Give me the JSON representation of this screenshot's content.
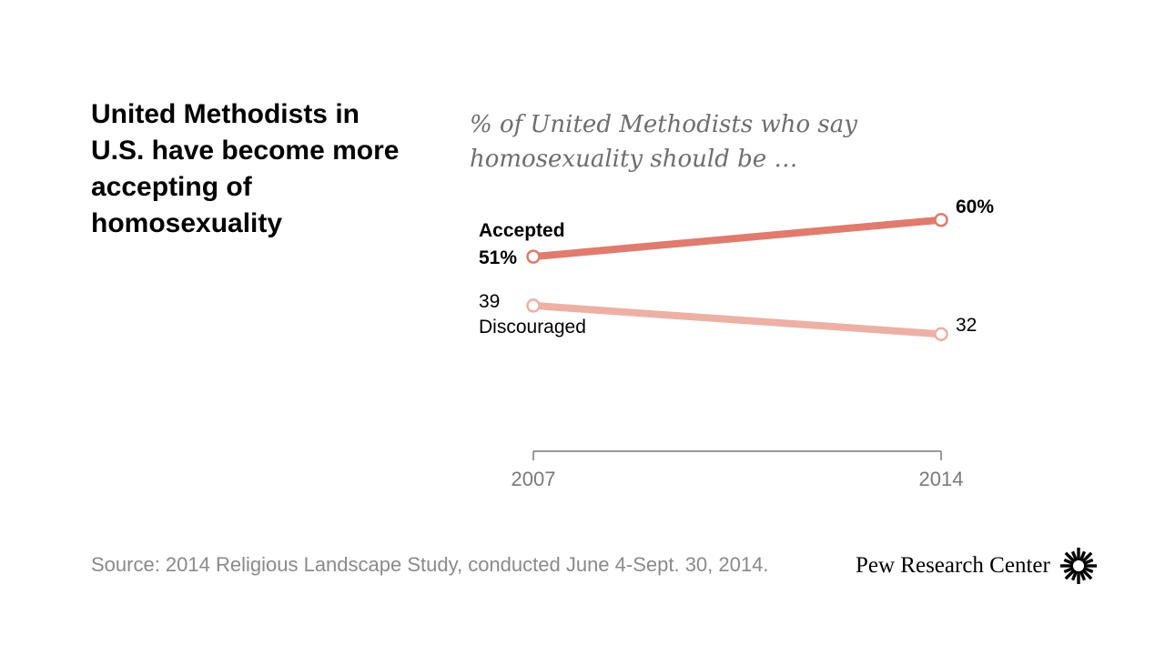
{
  "headline": "United Methodists in U.S. have become more accepting of homosexuality",
  "subtitle": "% of United Methodists who say homosexuality should be …",
  "source": "Source: 2014 Religious Landscape Study, conducted June 4-Sept. 30, 2014.",
  "logo_text": "Pew Research Center",
  "colors": {
    "accepted": "#e07b6e",
    "discouraged": "#edb0a5",
    "axis": "#7a7a7a"
  },
  "chart_data": {
    "type": "line",
    "x": [
      "2007",
      "2014"
    ],
    "ylim": [
      0,
      100
    ],
    "series": [
      {
        "name": "Accepted",
        "values": [
          51,
          60
        ],
        "start_label": "51%",
        "end_label": "60%"
      },
      {
        "name": "Discouraged",
        "values": [
          39,
          32
        ],
        "start_label": "39",
        "end_label": "32"
      }
    ]
  }
}
